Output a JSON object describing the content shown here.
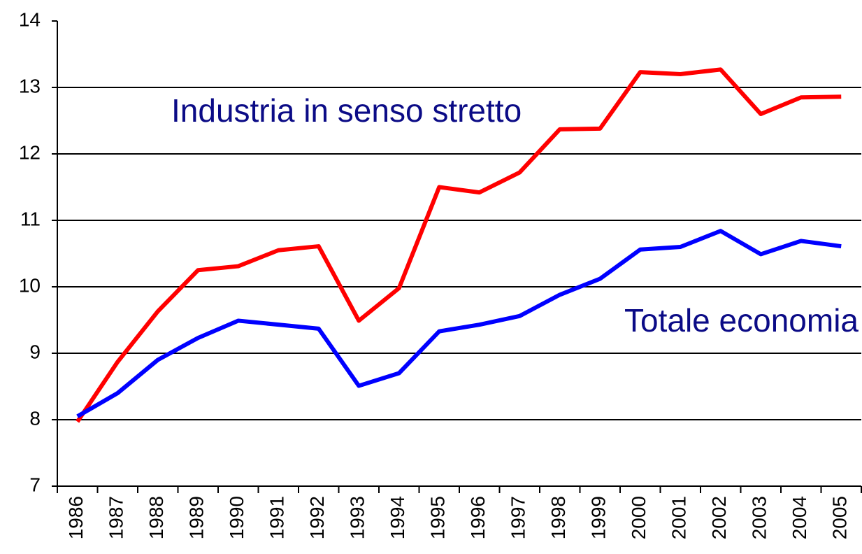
{
  "chart_data": {
    "type": "line",
    "categories": [
      "1986",
      "1987",
      "1988",
      "1989",
      "1990",
      "1991",
      "1992",
      "1993",
      "1994",
      "1995",
      "1996",
      "1997",
      "1998",
      "1999",
      "2000",
      "2001",
      "2002",
      "2003",
      "2004",
      "2005"
    ],
    "series": [
      {
        "name": "Industria in senso stretto",
        "color": "#ff0000",
        "values": [
          7.97,
          8.87,
          9.63,
          10.25,
          10.31,
          10.55,
          10.61,
          9.49,
          9.98,
          11.5,
          11.42,
          11.72,
          12.37,
          12.38,
          13.23,
          13.2,
          13.27,
          12.6,
          12.85,
          12.86
        ]
      },
      {
        "name": "Totale economia",
        "color": "#0000ff",
        "values": [
          8.05,
          8.4,
          8.9,
          9.23,
          9.49,
          9.43,
          9.37,
          8.51,
          8.7,
          9.33,
          9.43,
          9.56,
          9.88,
          10.12,
          10.56,
          10.6,
          10.84,
          10.49,
          10.69,
          10.61
        ]
      }
    ],
    "ylim": [
      7,
      14
    ],
    "yticks": [
      7,
      8,
      9,
      10,
      11,
      12,
      13,
      14
    ],
    "grid": true
  }
}
